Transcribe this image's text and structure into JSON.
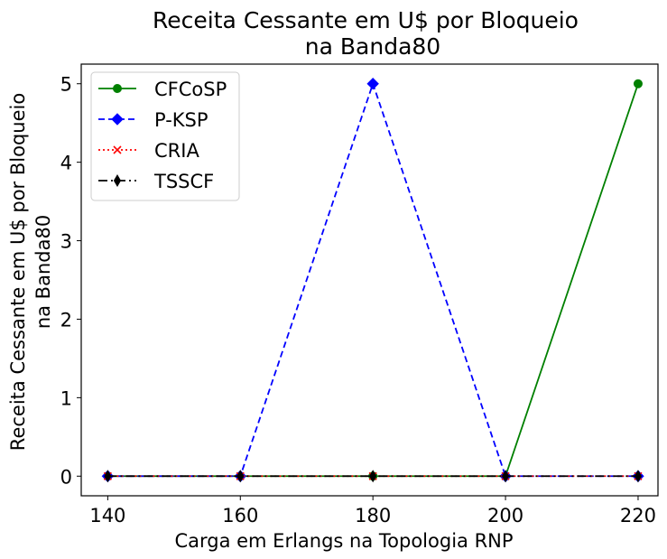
{
  "chart_data": {
    "type": "line",
    "title_line1": "Receita Cessante em U$ por Bloqueio",
    "title_line2": "na Banda80",
    "xlabel": "Carga em Erlangs na Topologia RNP",
    "ylabel_line1": "Receita Cessante em U$ por Bloqueio",
    "ylabel_line2": "na Banda80",
    "x": [
      140,
      160,
      180,
      200,
      220
    ],
    "x_ticks": [
      "140",
      "160",
      "180",
      "200",
      "220"
    ],
    "y_ticks": [
      "0",
      "1",
      "2",
      "3",
      "4",
      "5"
    ],
    "xlim": [
      136,
      223
    ],
    "ylim": [
      -0.25,
      5.25
    ],
    "grid": false,
    "legend_position": "top-left",
    "series": [
      {
        "name": "CFCoSP",
        "values": [
          0,
          0,
          0,
          0,
          5
        ],
        "color": "#008000",
        "dash": "solid",
        "marker": "circle"
      },
      {
        "name": "P-KSP",
        "values": [
          0,
          0,
          5,
          0,
          0
        ],
        "color": "#0000ff",
        "dash": "dashed",
        "marker": "diamond"
      },
      {
        "name": "CRIA",
        "values": [
          0,
          0,
          0,
          0,
          0
        ],
        "color": "#ff0000",
        "dash": "dotted",
        "marker": "x"
      },
      {
        "name": "TSSCF",
        "values": [
          0,
          0,
          0,
          0,
          0
        ],
        "color": "#000000",
        "dash": "dashdot",
        "marker": "thin-diamond"
      }
    ]
  }
}
